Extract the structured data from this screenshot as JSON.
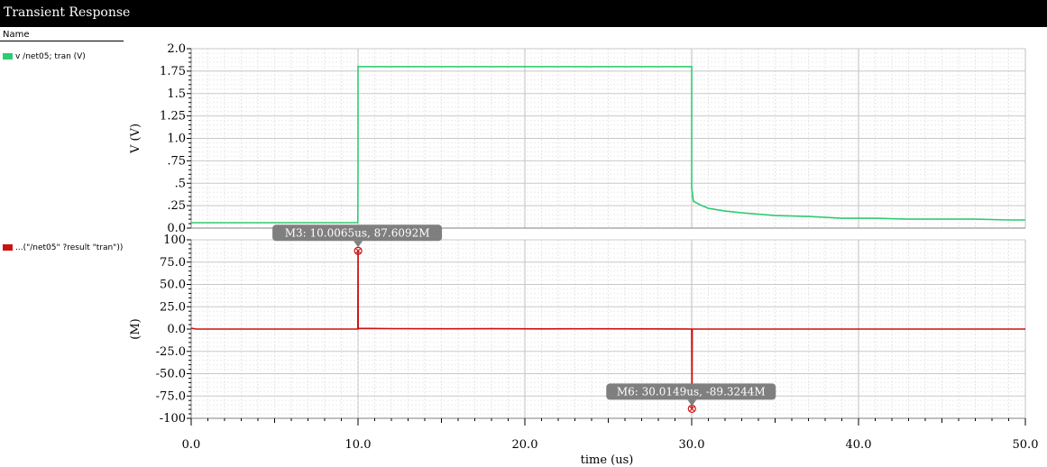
{
  "window": {
    "title": "Transient Response"
  },
  "legend": {
    "header": "Name",
    "items": [
      {
        "label": "v /net05; tran (V)",
        "color": "#2ecc71"
      },
      {
        "label": "...(\"/net05\" ?result \"tran\"))",
        "color": "#cc1111"
      }
    ]
  },
  "chart_data": [
    {
      "type": "line",
      "xlabel": "time (us)",
      "ylabel": "V (V)",
      "xlim": [
        0,
        50
      ],
      "ylim": [
        0,
        2.0
      ],
      "y_ticks": [
        0,
        0.25,
        0.5,
        0.75,
        1.0,
        1.25,
        1.5,
        1.75,
        2.0
      ],
      "y_tick_labels": [
        "0.0",
        ".25",
        ".5",
        ".75",
        "1.0",
        "1.25",
        "1.5",
        "1.75",
        "2.0"
      ],
      "grid": true,
      "series": [
        {
          "name": "v /net05; tran (V)",
          "color": "#2ecc71",
          "x": [
            0,
            9.99,
            10.0,
            10.0,
            29.99,
            30.0,
            30.0,
            30.1,
            30.5,
            31,
            32,
            33,
            35,
            37,
            39,
            41,
            43,
            45,
            47,
            49,
            50
          ],
          "y": [
            0.06,
            0.06,
            0.7,
            1.8,
            1.8,
            1.8,
            0.45,
            0.3,
            0.26,
            0.22,
            0.19,
            0.17,
            0.14,
            0.13,
            0.11,
            0.11,
            0.1,
            0.1,
            0.1,
            0.09,
            0.09
          ]
        }
      ]
    },
    {
      "type": "line",
      "xlabel": "time (us)",
      "ylabel": "(M)",
      "xlim": [
        0,
        50
      ],
      "ylim": [
        -100,
        100
      ],
      "y_ticks": [
        -100,
        -75,
        -50,
        -25,
        0,
        25,
        50,
        75,
        100
      ],
      "y_tick_labels": [
        "-100",
        "-75.0",
        "-50.0",
        "-25.0",
        "0.0",
        "25.0",
        "50.0",
        "75.0",
        "100"
      ],
      "x_ticks": [
        0,
        10,
        20,
        30,
        40,
        50
      ],
      "x_tick_labels": [
        "0.0",
        "10.0",
        "20.0",
        "30.0",
        "40.0",
        "50.0"
      ],
      "grid": true,
      "series": [
        {
          "name": "...(\"/net05\" ?result \"tran\"))",
          "color": "#cc1111",
          "x": [
            0,
            0.3,
            1,
            5,
            9.99,
            10.0,
            10.0065,
            10.01,
            10.02,
            12,
            15,
            18,
            21,
            24,
            27,
            29.99,
            30.0,
            30.0149,
            30.03,
            31,
            35,
            40,
            45,
            50
          ],
          "y": [
            1,
            0,
            0,
            0,
            0,
            87.6,
            87.6092,
            1.5,
            0.8,
            0.5,
            0.3,
            0.4,
            0.2,
            0.3,
            0.2,
            0,
            -3,
            -89.3244,
            0,
            0,
            0,
            0,
            0,
            0
          ]
        }
      ],
      "markers": [
        {
          "label": "M3: 10.0065us, 87.6092M",
          "x": 10.0065,
          "y": 87.6092
        },
        {
          "label": "M6: 30.0149us, -89.3244M",
          "x": 30.0149,
          "y": -89.3244
        }
      ]
    }
  ]
}
